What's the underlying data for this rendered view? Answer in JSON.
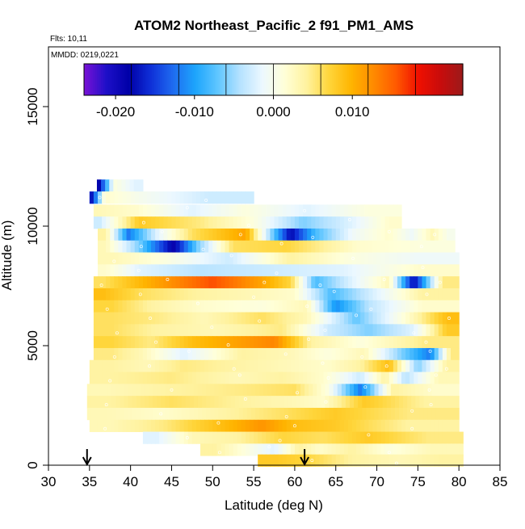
{
  "chart_data": {
    "type": "heatmap",
    "title": "ATOM2 Northeast_Pacific_2 f91_PM1_AMS",
    "flights_label": "Flts: 10,11",
    "dates_label": "MMDD: 0219,0221",
    "xlabel": "Latitude (deg N)",
    "ylabel": "Altitude (m)",
    "xlim": [
      30,
      85
    ],
    "ylim": [
      0,
      17500
    ],
    "x_ticks": [
      "30",
      "35",
      "40",
      "45",
      "50",
      "55",
      "60",
      "65",
      "70",
      "75",
      "80",
      "85"
    ],
    "y_ticks": [
      "0",
      "5000",
      "10000",
      "15000"
    ],
    "colorbar": {
      "range": [
        -0.024,
        0.024
      ],
      "tick_labels": [
        "-0.020",
        "-0.010",
        "0.000",
        "0.010"
      ],
      "tick_values": [
        -0.02,
        -0.01,
        0.0,
        0.01
      ],
      "colors": [
        "#7a12d6",
        "#1e10c8",
        "#0000a8",
        "#0f30d8",
        "#1f6cf0",
        "#1da5fc",
        "#5fc6ff",
        "#b5e2ff",
        "#ecf8ff",
        "#ffffd8",
        "#fff29e",
        "#ffd53a",
        "#ffb400",
        "#ff8a00",
        "#ff5a00",
        "#f01000",
        "#c80c0c",
        "#9c1a1a"
      ]
    },
    "arrows_at_latitude": [
      34.7,
      61.2
    ],
    "rows": [
      {
        "alt": 11700,
        "segments": [
          [
            35.9,
            36.5,
            -0.018
          ],
          [
            36.5,
            39.5,
            0.001
          ],
          [
            39.5,
            41.5,
            -0.002
          ]
        ]
      },
      {
        "alt": 11200,
        "segments": [
          [
            35.0,
            35.7,
            -0.017
          ],
          [
            35.7,
            38.0,
            0.002
          ],
          [
            38.0,
            44.0,
            0.0
          ],
          [
            44.0,
            55.0,
            -0.003
          ]
        ]
      },
      {
        "alt": 10650,
        "segments": [
          [
            35.5,
            36.5,
            0.003
          ],
          [
            36.5,
            45.0,
            0.002
          ],
          [
            45.0,
            50.0,
            -0.002
          ],
          [
            50.0,
            58.0,
            0.001
          ],
          [
            58.0,
            65.0,
            -0.002
          ],
          [
            65.0,
            73.0,
            0.001
          ]
        ]
      },
      {
        "alt": 10150,
        "segments": [
          [
            35.5,
            37.0,
            -0.003
          ],
          [
            37.0,
            45.0,
            0.008
          ],
          [
            45.0,
            52.0,
            0.005
          ],
          [
            52.0,
            58.0,
            0.001
          ],
          [
            58.0,
            64.0,
            -0.006
          ],
          [
            64.0,
            70.0,
            -0.002
          ],
          [
            70.0,
            73.0,
            0.002
          ]
        ]
      },
      {
        "alt": 9650,
        "segments": [
          [
            36.0,
            38.0,
            0.004
          ],
          [
            38.0,
            41.5,
            -0.012
          ],
          [
            41.5,
            45.0,
            -0.002
          ],
          [
            45.0,
            50.0,
            0.006
          ],
          [
            50.0,
            58.0,
            0.011
          ],
          [
            58.0,
            61.0,
            -0.018
          ],
          [
            61.0,
            64.0,
            -0.008
          ],
          [
            64.0,
            70.0,
            -0.001
          ],
          [
            70.0,
            73.0,
            0.002
          ],
          [
            73.0,
            75.5,
            -0.001
          ],
          [
            75.5,
            78.0,
            0.003
          ],
          [
            78.0,
            79.5,
            0.0
          ]
        ]
      },
      {
        "alt": 9150,
        "segments": [
          [
            36.0,
            38.0,
            0.003
          ],
          [
            38.0,
            44.0,
            -0.006
          ],
          [
            44.0,
            46.5,
            -0.019
          ],
          [
            46.5,
            50.0,
            -0.006
          ],
          [
            50.0,
            55.0,
            0.006
          ],
          [
            55.0,
            63.0,
            0.007
          ],
          [
            63.0,
            72.0,
            0.002
          ],
          [
            72.0,
            79.5,
            0.001
          ]
        ]
      },
      {
        "alt": 8650,
        "segments": [
          [
            36.0,
            40.0,
            0.003
          ],
          [
            40.0,
            48.0,
            0.001
          ],
          [
            48.0,
            56.0,
            -0.003
          ],
          [
            56.0,
            63.0,
            0.004
          ],
          [
            63.0,
            70.0,
            0.001
          ],
          [
            70.0,
            80.0,
            -0.001
          ]
        ]
      },
      {
        "alt": 8150,
        "segments": [
          [
            36.0,
            38.0,
            0.002
          ],
          [
            38.0,
            44.0,
            -0.002
          ],
          [
            44.0,
            53.0,
            -0.004
          ],
          [
            53.0,
            62.0,
            -0.003
          ],
          [
            62.0,
            70.0,
            -0.002
          ],
          [
            70.0,
            80.0,
            0.002
          ]
        ]
      },
      {
        "alt": 7650,
        "segments": [
          [
            35.5,
            38.0,
            0.006
          ],
          [
            38.0,
            43.0,
            0.009
          ],
          [
            43.0,
            46.0,
            0.012
          ],
          [
            46.0,
            54.0,
            0.016
          ],
          [
            54.0,
            58.0,
            0.011
          ],
          [
            58.0,
            61.0,
            0.007
          ],
          [
            61.0,
            64.0,
            -0.008
          ],
          [
            64.0,
            70.0,
            -0.002
          ],
          [
            70.0,
            73.0,
            0.003
          ],
          [
            73.0,
            76.0,
            -0.018
          ],
          [
            76.0,
            80.0,
            0.005
          ]
        ]
      },
      {
        "alt": 7150,
        "segments": [
          [
            35.5,
            38.0,
            0.009
          ],
          [
            38.0,
            45.0,
            0.006
          ],
          [
            45.0,
            52.0,
            0.004
          ],
          [
            52.0,
            58.0,
            0.003
          ],
          [
            58.0,
            62.0,
            0.002
          ],
          [
            62.0,
            67.0,
            -0.008
          ],
          [
            67.0,
            71.0,
            -0.003
          ],
          [
            71.0,
            80.0,
            0.004
          ]
        ]
      },
      {
        "alt": 6650,
        "segments": [
          [
            35.5,
            40.0,
            0.007
          ],
          [
            40.0,
            45.0,
            0.004
          ],
          [
            45.0,
            52.0,
            0.002
          ],
          [
            52.0,
            60.0,
            0.001
          ],
          [
            60.0,
            63.0,
            0.003
          ],
          [
            63.0,
            67.0,
            -0.011
          ],
          [
            67.0,
            71.0,
            -0.004
          ],
          [
            71.0,
            80.0,
            0.002
          ]
        ]
      },
      {
        "alt": 6150,
        "segments": [
          [
            35.5,
            40.0,
            0.006
          ],
          [
            40.0,
            46.0,
            0.005
          ],
          [
            46.0,
            52.0,
            0.003
          ],
          [
            52.0,
            60.0,
            0.006
          ],
          [
            60.0,
            63.0,
            0.003
          ],
          [
            63.0,
            72.0,
            -0.007
          ],
          [
            72.0,
            77.0,
            0.003
          ],
          [
            77.0,
            80.0,
            0.009
          ]
        ]
      },
      {
        "alt": 5650,
        "segments": [
          [
            35.5,
            40.0,
            0.006
          ],
          [
            40.0,
            46.0,
            0.004
          ],
          [
            46.0,
            55.0,
            0.003
          ],
          [
            55.0,
            62.0,
            0.005
          ],
          [
            62.0,
            66.0,
            -0.003
          ],
          [
            66.0,
            72.0,
            -0.006
          ],
          [
            72.0,
            77.0,
            -0.002
          ],
          [
            77.0,
            80.0,
            0.008
          ]
        ]
      },
      {
        "alt": 5150,
        "segments": [
          [
            35.5,
            40.0,
            0.007
          ],
          [
            40.0,
            45.0,
            0.005
          ],
          [
            45.0,
            50.0,
            0.009
          ],
          [
            50.0,
            55.0,
            0.011
          ],
          [
            55.0,
            60.0,
            0.013
          ],
          [
            60.0,
            64.0,
            0.004
          ],
          [
            64.0,
            72.0,
            0.001
          ],
          [
            72.0,
            80.0,
            0.005
          ]
        ]
      },
      {
        "alt": 4650,
        "segments": [
          [
            35.5,
            40.0,
            0.005
          ],
          [
            40.0,
            43.0,
            0.003
          ],
          [
            43.0,
            50.0,
            -0.002
          ],
          [
            50.0,
            57.0,
            0.004
          ],
          [
            57.0,
            62.0,
            0.003
          ],
          [
            62.0,
            66.0,
            0.001
          ],
          [
            66.0,
            71.0,
            0.003
          ],
          [
            71.0,
            75.0,
            -0.006
          ],
          [
            75.0,
            78.0,
            -0.012
          ],
          [
            78.0,
            80.0,
            0.005
          ]
        ]
      },
      {
        "alt": 4150,
        "segments": [
          [
            35.0,
            40.0,
            0.004
          ],
          [
            40.0,
            44.0,
            0.003
          ],
          [
            44.0,
            49.0,
            0.005
          ],
          [
            49.0,
            55.0,
            0.004
          ],
          [
            55.0,
            62.0,
            0.003
          ],
          [
            62.0,
            66.0,
            0.002
          ],
          [
            66.0,
            70.0,
            0.004
          ],
          [
            70.0,
            73.0,
            0.009
          ],
          [
            73.0,
            77.0,
            -0.006
          ],
          [
            77.0,
            80.0,
            0.004
          ]
        ]
      },
      {
        "alt": 3650,
        "segments": [
          [
            35.0,
            40.0,
            0.004
          ],
          [
            40.0,
            50.0,
            0.005
          ],
          [
            50.0,
            56.0,
            0.003
          ],
          [
            56.0,
            61.0,
            0.004
          ],
          [
            61.0,
            66.0,
            0.002
          ],
          [
            66.0,
            70.0,
            -0.003
          ],
          [
            70.0,
            72.0,
            0.004
          ],
          [
            72.0,
            75.0,
            -0.004
          ],
          [
            75.0,
            80.0,
            0.003
          ]
        ]
      },
      {
        "alt": 3150,
        "segments": [
          [
            34.7,
            40.0,
            0.003
          ],
          [
            40.0,
            50.0,
            0.004
          ],
          [
            50.0,
            58.0,
            0.005
          ],
          [
            58.0,
            62.0,
            0.006
          ],
          [
            62.0,
            66.0,
            0.001
          ],
          [
            66.0,
            70.0,
            -0.012
          ],
          [
            70.0,
            74.0,
            0.004
          ],
          [
            74.0,
            80.0,
            0.002
          ]
        ]
      },
      {
        "alt": 2650,
        "segments": [
          [
            34.7,
            40.0,
            0.004
          ],
          [
            40.0,
            50.0,
            0.006
          ],
          [
            50.0,
            58.0,
            0.004
          ],
          [
            58.0,
            62.0,
            0.003
          ],
          [
            62.0,
            65.0,
            0.002
          ],
          [
            65.0,
            72.0,
            0.008
          ],
          [
            72.0,
            80.0,
            0.004
          ]
        ]
      },
      {
        "alt": 2150,
        "segments": [
          [
            34.7,
            40.0,
            0.003
          ],
          [
            40.0,
            48.0,
            0.002
          ],
          [
            48.0,
            56.0,
            0.004
          ],
          [
            56.0,
            62.0,
            0.006
          ],
          [
            62.0,
            68.0,
            0.008
          ],
          [
            68.0,
            80.0,
            0.005
          ]
        ]
      },
      {
        "alt": 1650,
        "segments": [
          [
            35.0,
            40.0,
            0.003
          ],
          [
            40.0,
            48.0,
            0.005
          ],
          [
            48.0,
            54.0,
            0.009
          ],
          [
            54.0,
            58.0,
            0.012
          ],
          [
            58.0,
            62.0,
            0.009
          ],
          [
            62.0,
            68.0,
            0.008
          ],
          [
            68.0,
            80.0,
            0.004
          ]
        ]
      },
      {
        "alt": 1150,
        "segments": [
          [
            41.5,
            45.0,
            -0.002
          ],
          [
            45.0,
            50.0,
            0.003
          ],
          [
            50.0,
            56.0,
            0.004
          ],
          [
            56.0,
            61.0,
            0.007
          ],
          [
            61.0,
            66.0,
            0.006
          ],
          [
            66.0,
            72.0,
            0.008
          ],
          [
            72.0,
            80.5,
            0.005
          ]
        ]
      },
      {
        "alt": 650,
        "segments": [
          [
            48.5,
            52.0,
            0.004
          ],
          [
            52.0,
            56.0,
            0.001
          ],
          [
            56.0,
            59.0,
            -0.002
          ],
          [
            59.0,
            62.0,
            0.004
          ],
          [
            62.0,
            64.0,
            0.002
          ],
          [
            64.0,
            70.0,
            0.004
          ],
          [
            70.0,
            73.0,
            0.001
          ],
          [
            73.0,
            80.5,
            0.003
          ]
        ]
      },
      {
        "alt": 200,
        "segments": [
          [
            55.5,
            60.0,
            0.008
          ],
          [
            60.0,
            63.0,
            0.007
          ],
          [
            63.0,
            71.0,
            0.004
          ],
          [
            71.0,
            75.0,
            0.003
          ],
          [
            75.0,
            80.5,
            0.004
          ]
        ]
      }
    ]
  }
}
